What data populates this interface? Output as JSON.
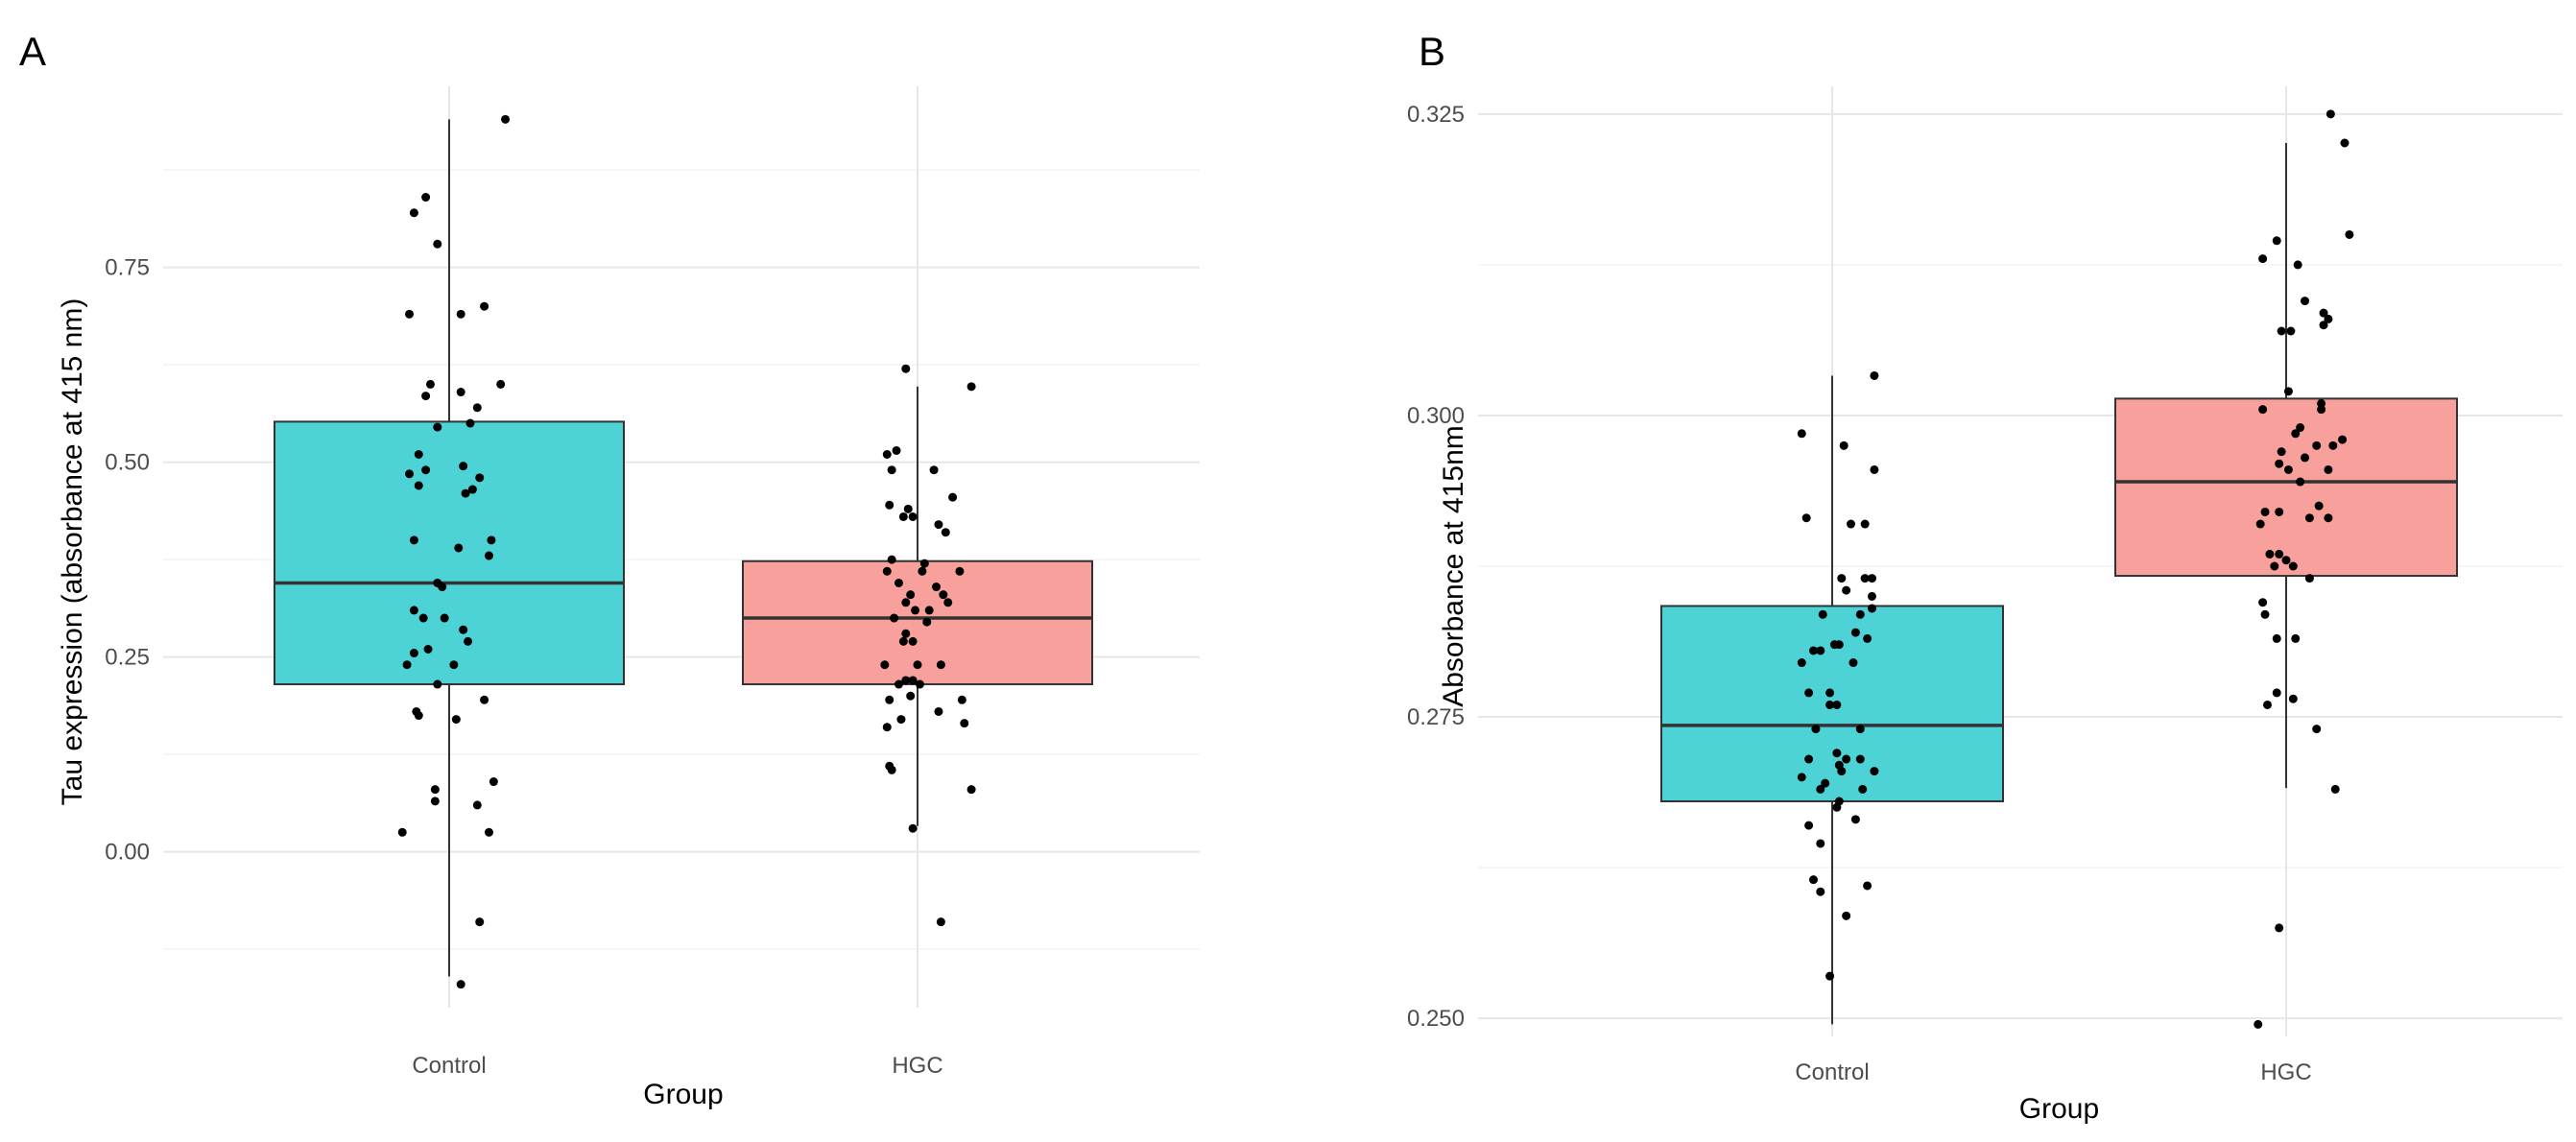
{
  "colors": {
    "control": "#4DD3D6",
    "hgc": "#F8A09B"
  },
  "chart_data": [
    {
      "type": "box",
      "panel_label": "A",
      "xlabel": "Group",
      "ylabel": "Tau expression (absorbance at 415 nm)",
      "categories": [
        "Control",
        "HGC"
      ],
      "ylim": [
        -0.2,
        0.97
      ],
      "yticks": [
        0.0,
        0.25,
        0.5,
        0.75
      ],
      "ytick_labels": [
        "0.00",
        "0.25",
        "0.50",
        "0.75"
      ],
      "yminor": [
        -0.125,
        0.125,
        0.375,
        0.625,
        0.875
      ],
      "boxes": [
        {
          "category": "Control",
          "q1": 0.215,
          "median": 0.345,
          "q3": 0.552,
          "whisker_low": -0.16,
          "whisker_high": 0.94,
          "color_key": "control"
        },
        {
          "category": "HGC",
          "q1": 0.215,
          "median": 0.3,
          "q3": 0.373,
          "whisker_low": 0.033,
          "whisker_high": 0.597,
          "color_key": "hgc"
        }
      ],
      "points": [
        {
          "category": "Control",
          "jitter": [
            0.24,
            -0.15,
            -0.1,
            -0.05,
            0.15,
            0.05,
            -0.17,
            -0.08,
            0.22,
            -0.1,
            0.05,
            0.12,
            -0.05,
            0.09,
            -0.13,
            -0.1,
            -0.17,
            0.06,
            0.13,
            0.1,
            0.07,
            -0.13,
            -0.15,
            0.04,
            0.18,
            0.17,
            -0.05,
            -0.03,
            -0.15,
            -0.02,
            -0.11,
            0.06,
            0.08,
            -0.15,
            -0.09,
            -0.18,
            0.02,
            -0.05,
            0.15,
            -0.14,
            -0.13,
            0.03,
            0.19,
            -0.06,
            -0.06,
            0.12,
            -0.2,
            0.17,
            0.05,
            0.13
          ],
          "values": [
            0.94,
            0.82,
            0.84,
            0.78,
            0.7,
            0.69,
            0.69,
            0.6,
            0.6,
            0.585,
            0.59,
            0.57,
            0.545,
            0.55,
            0.51,
            0.49,
            0.485,
            0.495,
            0.48,
            0.465,
            0.46,
            0.47,
            0.4,
            0.39,
            0.4,
            0.38,
            0.345,
            0.34,
            0.31,
            0.3,
            0.3,
            0.285,
            0.27,
            0.255,
            0.26,
            0.24,
            0.24,
            0.215,
            0.195,
            0.18,
            0.175,
            0.17,
            0.09,
            0.08,
            0.065,
            0.06,
            0.025,
            0.025,
            -0.17,
            -0.09
          ]
        },
        {
          "category": "HGC",
          "jitter": [
            -0.05,
            0.23,
            -0.09,
            -0.13,
            -0.11,
            0.07,
            0.15,
            -0.12,
            -0.04,
            -0.06,
            -0.02,
            0.09,
            0.12,
            0.03,
            -0.11,
            -0.13,
            0.02,
            0.18,
            -0.08,
            0.08,
            -0.03,
            0.11,
            -0.05,
            0.13,
            -0.01,
            0.05,
            -0.1,
            0.04,
            -0.05,
            -0.02,
            -0.06,
            -0.14,
            0.1,
            0.0,
            -0.02,
            -0.05,
            -0.08,
            0.01,
            -0.03,
            -0.12,
            0.19,
            0.09,
            0.2,
            -0.07,
            -0.13,
            -0.12,
            -0.11,
            0.23,
            -0.02,
            0.1
          ],
          "values": [
            0.62,
            0.597,
            0.515,
            0.51,
            0.49,
            0.49,
            0.455,
            0.445,
            0.44,
            0.43,
            0.43,
            0.42,
            0.41,
            0.37,
            0.375,
            0.36,
            0.36,
            0.36,
            0.345,
            0.34,
            0.33,
            0.33,
            0.32,
            0.32,
            0.31,
            0.31,
            0.3,
            0.295,
            0.28,
            0.27,
            0.27,
            0.24,
            0.24,
            0.24,
            0.22,
            0.22,
            0.215,
            0.215,
            0.2,
            0.195,
            0.195,
            0.18,
            0.165,
            0.17,
            0.16,
            0.11,
            0.105,
            0.08,
            0.03,
            -0.09
          ]
        }
      ]
    },
    {
      "type": "box",
      "panel_label": "B",
      "xlabel": "Group",
      "ylabel": "Absorbance at 415nm",
      "categories": [
        "Control",
        "HGC"
      ],
      "ylim": [
        0.2485,
        0.3265
      ],
      "yticks": [
        0.25,
        0.275,
        0.3,
        0.325
      ],
      "ytick_labels": [
        "0.250",
        "0.275",
        "0.300",
        "0.325"
      ],
      "yminor": [
        0.2625,
        0.2875,
        0.3125
      ],
      "boxes": [
        {
          "category": "Control",
          "q1": 0.268,
          "median": 0.2743,
          "q3": 0.2842,
          "whisker_low": 0.2495,
          "whisker_high": 0.3033,
          "color_key": "control"
        },
        {
          "category": "HGC",
          "q1": 0.2867,
          "median": 0.2945,
          "q3": 0.3014,
          "whisker_low": 0.2691,
          "whisker_high": 0.3226,
          "color_key": "hgc"
        }
      ],
      "points": [
        {
          "category": "Control",
          "jitter": [
            0.18,
            -0.13,
            0.18,
            0.05,
            0.14,
            0.14,
            0.08,
            0.17,
            0.06,
            0.17,
            -0.11,
            0.04,
            0.17,
            -0.04,
            -0.08,
            0.12,
            0.01,
            0.1,
            0.15,
            -0.05,
            0.09,
            0.03,
            -0.13,
            -0.1,
            -0.01,
            0.12,
            -0.01,
            0.02,
            -0.07,
            0.03,
            -0.1,
            0.02,
            0.12,
            0.06,
            0.04,
            0.18,
            -0.03,
            -0.13,
            -0.05,
            0.13,
            0.02,
            0.03,
            -0.1,
            0.1,
            -0.05,
            -0.08,
            0.15,
            -0.05,
            0.06,
            -0.01
          ],
          "values": [
            0.3033,
            0.2985,
            0.2955,
            0.2975,
            0.291,
            0.2865,
            0.291,
            0.2865,
            0.2855,
            0.285,
            0.2915,
            0.2865,
            0.284,
            0.2835,
            0.2805,
            0.2835,
            0.281,
            0.282,
            0.2815,
            0.2805,
            0.2795,
            0.281,
            0.2795,
            0.277,
            0.276,
            0.274,
            0.277,
            0.276,
            0.274,
            0.271,
            0.2715,
            0.272,
            0.2715,
            0.2715,
            0.2705,
            0.2705,
            0.2695,
            0.27,
            0.269,
            0.269,
            0.2675,
            0.268,
            0.266,
            0.2665,
            0.2645,
            0.2615,
            0.261,
            0.2605,
            0.2585,
            0.2535
          ]
        },
        {
          "category": "HGC",
          "jitter": [
            0.19,
            0.25,
            -0.04,
            0.27,
            0.05,
            -0.1,
            0.08,
            0.16,
            0.18,
            0.16,
            -0.02,
            0.02,
            0.01,
            0.15,
            0.15,
            -0.1,
            0.2,
            0.06,
            0.13,
            0.04,
            -0.03,
            0.08,
            0.24,
            -0.02,
            0.14,
            0.18,
            0.06,
            0.01,
            0.1,
            -0.03,
            -0.09,
            0.18,
            -0.11,
            -0.07,
            -0.05,
            0.0,
            0.03,
            -0.03,
            -0.1,
            0.1,
            -0.09,
            -0.04,
            0.04,
            -0.04,
            0.03,
            -0.08,
            0.13,
            0.21,
            -0.03,
            -0.12
          ],
          "values": [
            0.325,
            0.3226,
            0.3145,
            0.315,
            0.3125,
            0.313,
            0.3095,
            0.3085,
            0.308,
            0.3075,
            0.307,
            0.307,
            0.302,
            0.3005,
            0.301,
            0.3005,
            0.2975,
            0.299,
            0.2975,
            0.2985,
            0.296,
            0.2965,
            0.298,
            0.297,
            0.2925,
            0.2955,
            0.2945,
            0.2955,
            0.2915,
            0.292,
            0.292,
            0.2915,
            0.291,
            0.2885,
            0.2875,
            0.288,
            0.2875,
            0.2885,
            0.2845,
            0.2865,
            0.2835,
            0.2815,
            0.2815,
            0.277,
            0.2765,
            0.276,
            0.274,
            0.269,
            0.2575,
            0.2495
          ]
        }
      ]
    }
  ]
}
